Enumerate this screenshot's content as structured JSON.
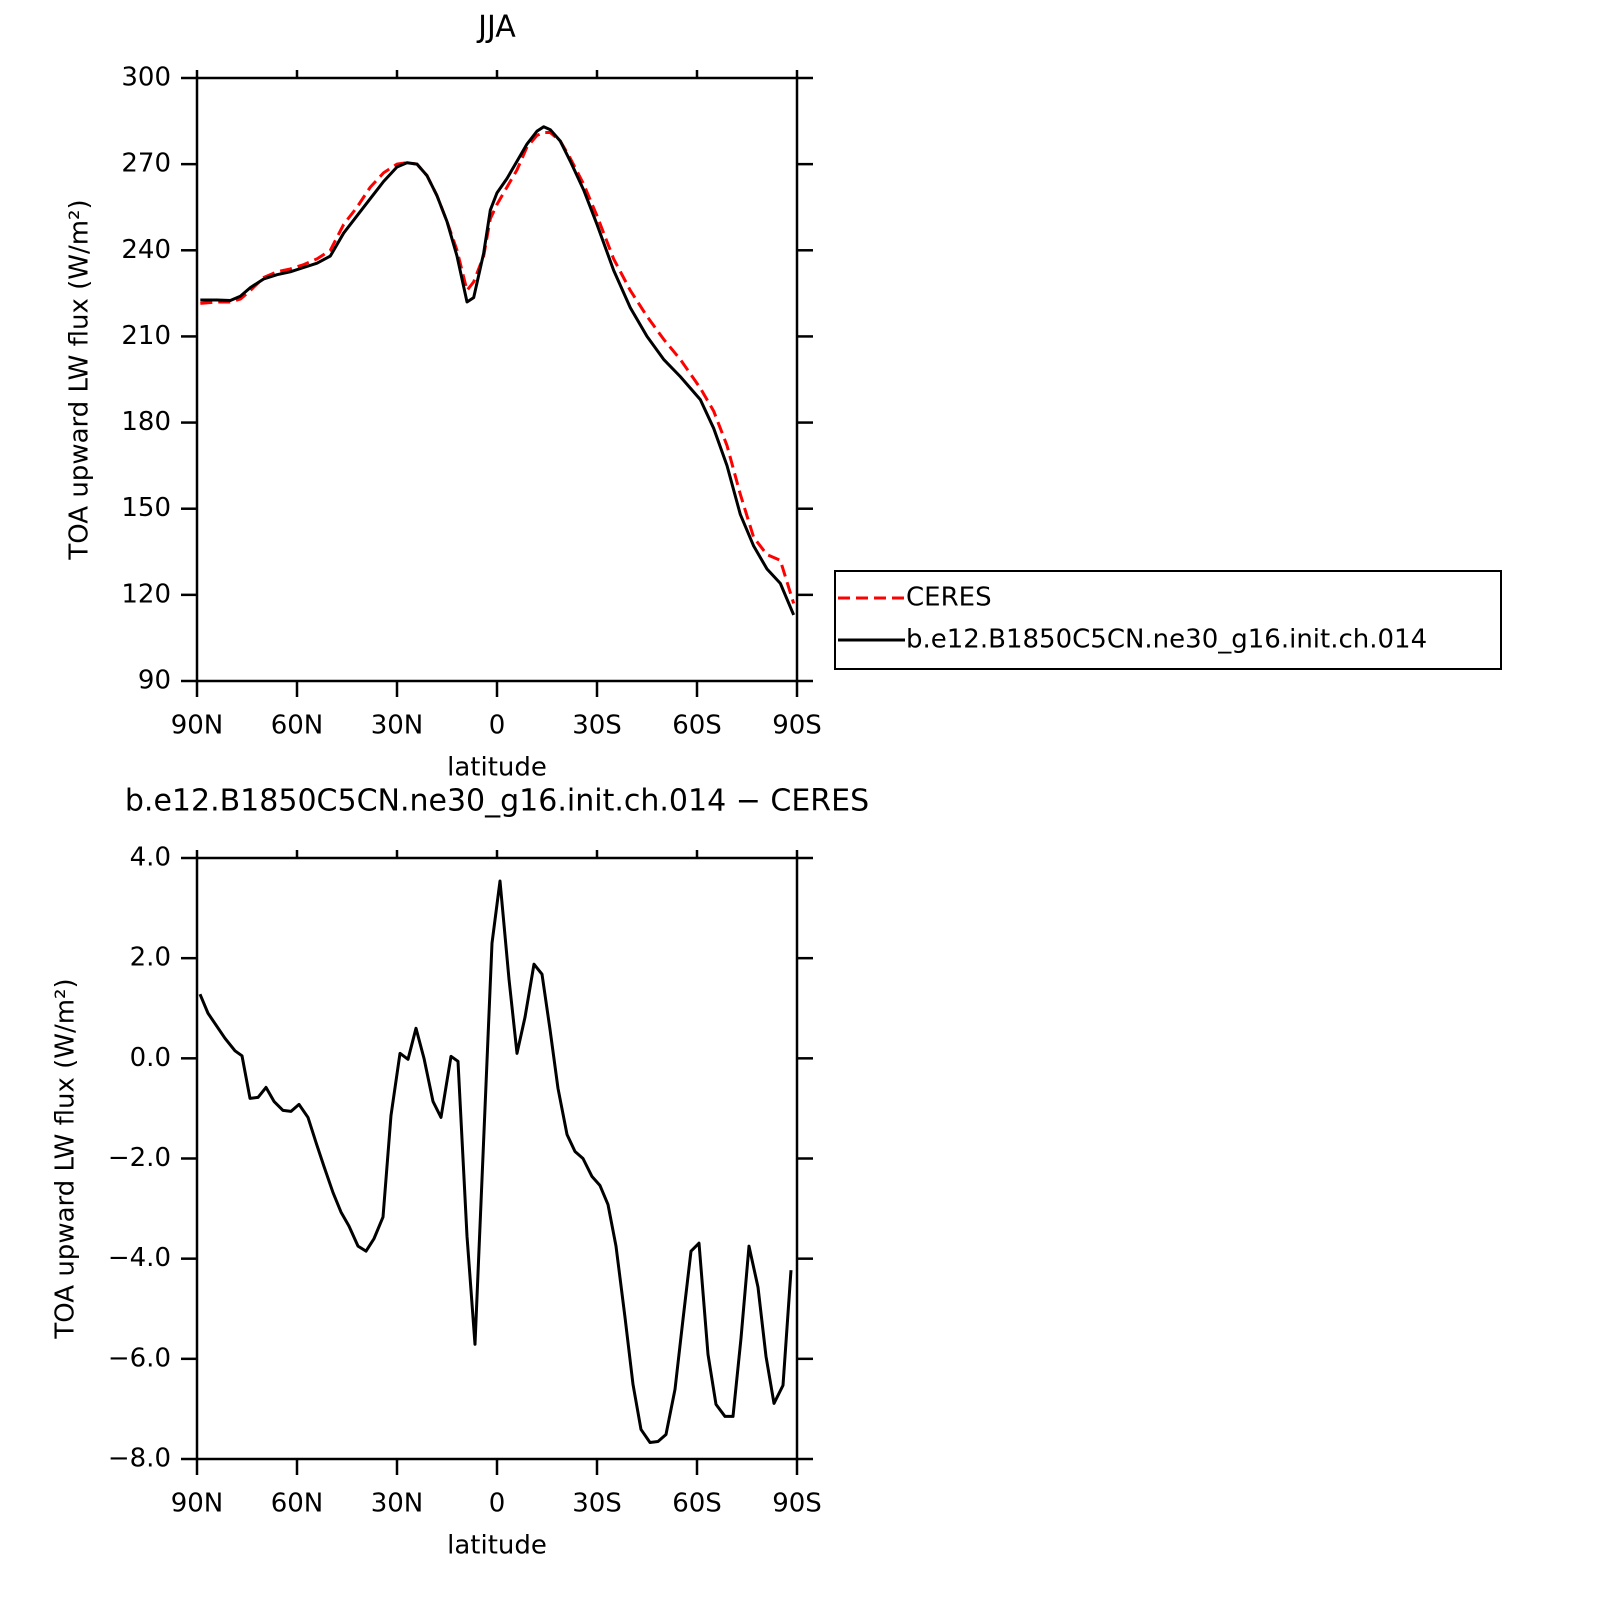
{
  "chart_data": [
    {
      "type": "line",
      "title": "JJA",
      "xlabel": "latitude",
      "ylabel": "TOA upward LW flux (W/m²)",
      "xlim": [
        90,
        -90
      ],
      "xticks": [
        {
          "value": 90,
          "label": "90N"
        },
        {
          "value": 60,
          "label": "60N"
        },
        {
          "value": 30,
          "label": "30N"
        },
        0,
        {
          "value": -30,
          "label": "30S"
        },
        {
          "value": -60,
          "label": "60S"
        },
        {
          "value": -90,
          "label": "90S"
        }
      ],
      "ylim": [
        90,
        300
      ],
      "yticks": [
        90,
        120,
        150,
        180,
        210,
        240,
        270,
        300
      ],
      "legend": "right",
      "x": [
        89,
        84,
        80,
        77,
        74,
        70,
        66,
        62,
        58,
        54,
        50,
        46,
        42,
        38,
        34,
        30,
        27,
        24,
        21,
        18,
        15,
        12,
        9,
        7,
        4,
        2,
        0,
        -3,
        -6,
        -9,
        -12,
        -14,
        -16,
        -19,
        -22,
        -26,
        -30,
        -35,
        -40,
        -45,
        -50,
        -55,
        -58,
        -61,
        -65,
        -69,
        -73,
        -77,
        -81,
        -85,
        -89
      ],
      "series": [
        {
          "name": "CERES",
          "color": "#ff0000",
          "line_style": "dashed",
          "values": [
            221.5,
            222,
            222,
            223,
            226,
            230.5,
            232.5,
            233.5,
            235,
            237,
            240,
            249,
            255,
            262,
            267,
            270,
            270.5,
            270,
            266,
            259,
            250,
            240,
            226,
            229,
            238,
            251,
            256,
            262,
            268,
            276,
            280,
            281,
            281,
            278,
            272,
            263,
            252,
            237,
            226,
            217,
            209,
            202,
            197,
            192,
            184,
            172,
            155,
            140,
            134,
            132,
            117
          ]
        },
        {
          "name": "b.e12.B1850C5CN.ne30_g16.init.ch.014",
          "color": "#000000",
          "line_style": "solid",
          "values": [
            222.7,
            222.7,
            222.5,
            224,
            227,
            230,
            231.5,
            232.5,
            234,
            235.5,
            238,
            246,
            252,
            258,
            264,
            269,
            270.5,
            270,
            266,
            259,
            250,
            238,
            222,
            223.5,
            239,
            254,
            260,
            265,
            271,
            277,
            281.5,
            283,
            282,
            278,
            271,
            261,
            249,
            233,
            220,
            210,
            202,
            196,
            192,
            188,
            178,
            165,
            148,
            137,
            129,
            124,
            113
          ]
        }
      ]
    },
    {
      "type": "line",
      "title": "b.e12.B1850C5CN.ne30_g16.init.ch.014 − CERES",
      "xlabel": "latitude",
      "ylabel": "TOA upward LW flux (W/m²)",
      "xlim": [
        90,
        -90
      ],
      "xticks": [
        {
          "value": 90,
          "label": "90N"
        },
        {
          "value": 60,
          "label": "60N"
        },
        {
          "value": 30,
          "label": "30N"
        },
        0,
        {
          "value": -30,
          "label": "30S"
        },
        {
          "value": -60,
          "label": "60S"
        },
        {
          "value": -90,
          "label": "90S"
        }
      ],
      "ylim": [
        -8,
        4
      ],
      "yticks": [
        {
          "value": -8,
          "label": "−8.0"
        },
        {
          "value": -6,
          "label": "−6.0"
        },
        {
          "value": -4,
          "label": "−4.0"
        },
        {
          "value": -2,
          "label": "−2.0"
        },
        {
          "value": 0,
          "label": "0.0"
        },
        {
          "value": 2,
          "label": "2.0"
        },
        {
          "value": 4,
          "label": "4.0"
        }
      ],
      "x": [
        89.1,
        86.7,
        81.6,
        78.6,
        76.5,
        74.1,
        71.7,
        69.3,
        66.9,
        64.2,
        61.8,
        59.4,
        56.7,
        54.3,
        51.9,
        49.2,
        46.8,
        44.4,
        41.7,
        39.3,
        36.9,
        34.2,
        31.8,
        29.1,
        26.7,
        24.3,
        21.9,
        19.2,
        16.8,
        13.8,
        11.7,
        9,
        6.6,
        1.5,
        -0.9,
        -3.6,
        -6,
        -8.4,
        -11.1,
        -13.5,
        -15.9,
        -18.3,
        -21,
        -23.4,
        -25.8,
        -28.5,
        -30.9,
        -33.3,
        -35.7,
        -38.4,
        -40.8,
        -43.2,
        -45.9,
        -48.3,
        -50.7,
        -53.4,
        -55.8,
        -58.2,
        -60.6,
        -63.3,
        -65.7,
        -68.4,
        -70.8,
        -73.2,
        -75.6,
        -78.3,
        -80.7,
        -83.1,
        -85.8,
        -88.2
      ],
      "color": "#000000",
      "values": [
        1.28,
        0.9,
        0.4,
        0.15,
        0.05,
        -0.8,
        -0.78,
        -0.58,
        -0.86,
        -1.04,
        -1.06,
        -0.92,
        -1.18,
        -1.68,
        -2.16,
        -2.68,
        -3.07,
        -3.35,
        -3.75,
        -3.85,
        -3.6,
        -3.17,
        -1.14,
        0.1,
        -0.02,
        0.6,
        0,
        -0.86,
        -1.18,
        0.04,
        -0.06,
        -3.55,
        -5.71,
        2.3,
        3.54,
        1.58,
        0.1,
        0.82,
        1.88,
        1.68,
        0.58,
        -0.6,
        -1.52,
        -1.86,
        -2.0,
        -2.36,
        -2.54,
        -2.92,
        -3.75,
        -5.17,
        -6.51,
        -7.41,
        -7.67,
        -7.65,
        -7.51,
        -6.61,
        -5.21,
        -3.85,
        -3.69,
        -5.91,
        -6.91,
        -7.15,
        -7.15,
        -5.59,
        -3.75,
        -4.57,
        -5.95,
        -6.89,
        -6.53,
        -4.23
      ]
    }
  ]
}
